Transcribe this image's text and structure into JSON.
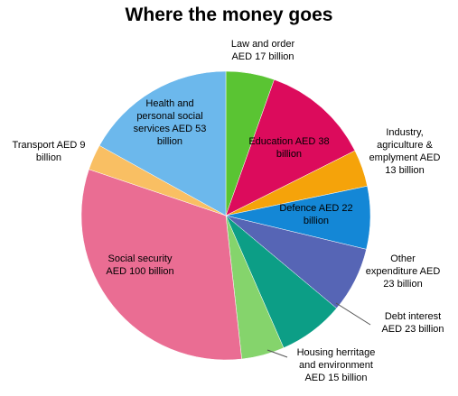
{
  "chart_data": {
    "type": "pie",
    "title": "Where the money goes",
    "start_angle_deg": 0,
    "direction": "clockwise",
    "slices": [
      {
        "label": "Law and order\nAED 17 billion",
        "value": 17,
        "color": "#5ac433"
      },
      {
        "label": "Education AED 38\nbillion",
        "value": 38,
        "color": "#dc0b5c"
      },
      {
        "label": "Industry,\nagriculture &\nemplyment AED\n13 billion",
        "value": 13,
        "color": "#f5a30a"
      },
      {
        "label": "Defence AED 22\nbillion",
        "value": 22,
        "color": "#1487d6"
      },
      {
        "label": "Other\nexpenditure AED\n23 billion",
        "value": 23,
        "color": "#5665b5"
      },
      {
        "label": "Debt interest\nAED 23 billion",
        "value": 23,
        "color": "#0c9e86"
      },
      {
        "label": "Housing herritage\nand environment\nAED 15 billion",
        "value": 15,
        "color": "#85d46c"
      },
      {
        "label": "Social security\nAED 100 billion",
        "value": 100,
        "color": "#ea6d93"
      },
      {
        "label": "Transport AED 9\nbillion",
        "value": 9,
        "color": "#f9bf63"
      },
      {
        "label": "Health and\npersonal social\nservices AED 53\nbillion",
        "value": 53,
        "color": "#6cb8ec"
      }
    ]
  }
}
